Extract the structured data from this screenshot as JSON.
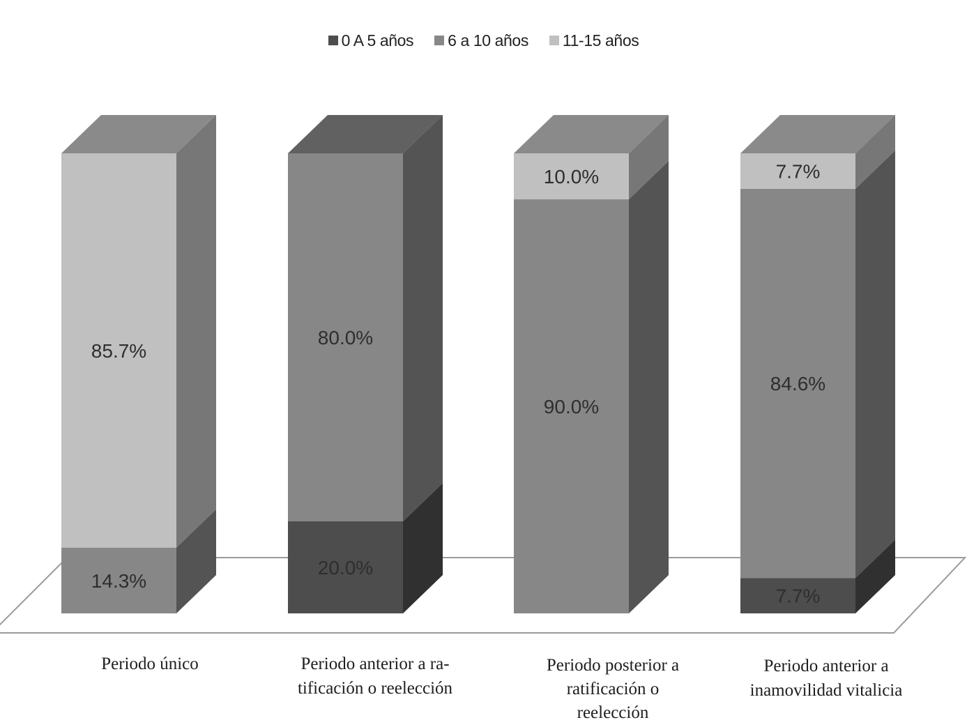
{
  "chart_data": {
    "type": "bar",
    "stacked": true,
    "categories": [
      "Periodo único",
      "Periodo anterior a ra-\ntificación o reelección",
      "Periodo posterior a\nratificación o\nreelección",
      "Periodo anterior a\ninamovilidad vitalicia"
    ],
    "series": [
      {
        "name": "0 A 5 años",
        "color": "#4d4d4d",
        "values": [
          0,
          20.0,
          0,
          7.7
        ]
      },
      {
        "name": "6 a 10 años",
        "color": "#878787",
        "values": [
          14.3,
          80.0,
          90.0,
          84.6
        ]
      },
      {
        "name": "11-15 años",
        "color": "#c0c0c0",
        "values": [
          85.7,
          0,
          10.0,
          7.7
        ]
      }
    ],
    "ylim": [
      0,
      100
    ],
    "grid": false,
    "legend_position": "top-center"
  }
}
